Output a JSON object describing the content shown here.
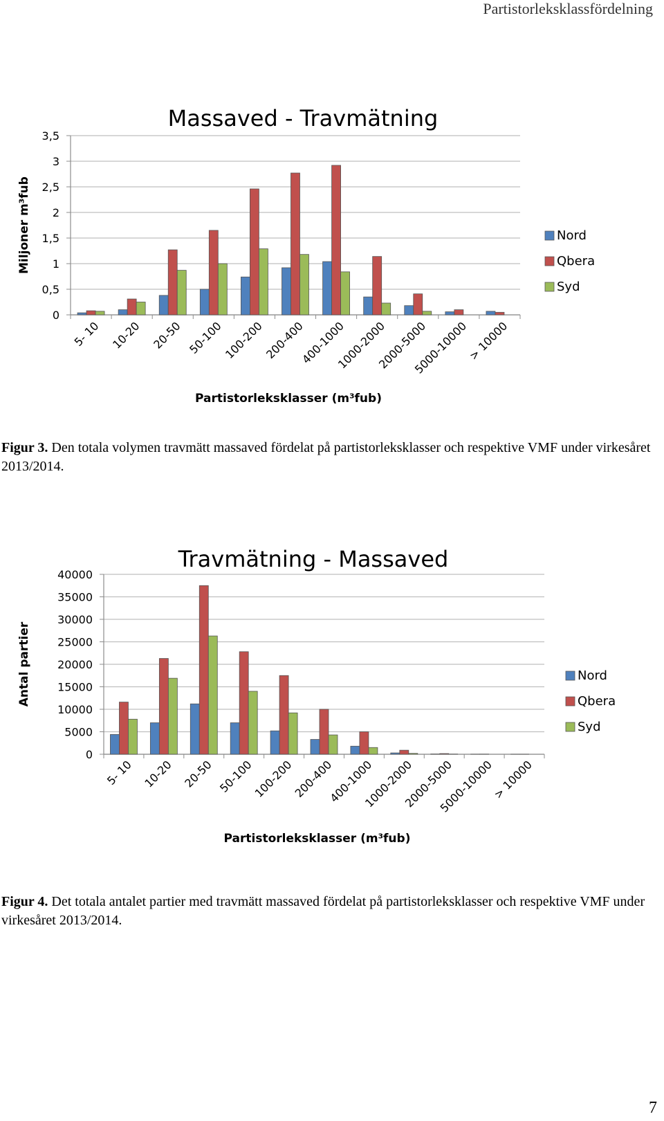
{
  "running_header": "Partistorleksklassfördelning",
  "page_number": "7",
  "colors": {
    "Nord": "#4F81BD",
    "Qbera": "#C0504D",
    "Syd": "#9BBB59",
    "grid": "#bfbfbf"
  },
  "captions": [
    {
      "label": "Figur 3.",
      "text": " Den totala volymen travmätt massaved fördelat på partistorleksklasser och respektive VMF under virkesåret 2013/2014."
    },
    {
      "label": "Figur 4.",
      "text": " Det totala antalet partier med travmätt massaved fördelat på partistorleksklasser och respektive VMF under virkesåret 2013/2014."
    }
  ],
  "chart_data": [
    {
      "type": "bar",
      "title": "Massaved - Travmätning",
      "xlabel": "Partistorleksklasser (m³fub)",
      "ylabel": "Miljoner m³fub",
      "ylim": [
        0,
        3.5
      ],
      "yticks": [
        "0",
        "0,5",
        "1",
        "1,5",
        "2",
        "2,5",
        "3",
        "3,5"
      ],
      "grid": true,
      "legend": "right",
      "categories": [
        "5- 10",
        "10-20",
        "20-50",
        "50-100",
        "100-200",
        "200-400",
        "400-1000",
        "1000-2000",
        "2000-5000",
        "5000-10000",
        "> 10000"
      ],
      "series": [
        {
          "name": "Nord",
          "values": [
            0.04,
            0.1,
            0.38,
            0.5,
            0.74,
            0.92,
            1.04,
            0.35,
            0.18,
            0.06,
            0.07
          ]
        },
        {
          "name": "Qbera",
          "values": [
            0.08,
            0.31,
            1.27,
            1.65,
            2.46,
            2.77,
            2.92,
            1.14,
            0.41,
            0.1,
            0.05
          ]
        },
        {
          "name": "Syd",
          "values": [
            0.07,
            0.25,
            0.87,
            1.0,
            1.29,
            1.18,
            0.84,
            0.23,
            0.07,
            0.0,
            0.0
          ]
        }
      ]
    },
    {
      "type": "bar",
      "title": "Travmätning - Massaved",
      "xlabel": "Partistorleksklasser (m³fub)",
      "ylabel": "Antal partier",
      "ylim": [
        0,
        40000
      ],
      "yticks": [
        "0",
        "5000",
        "10000",
        "15000",
        "20000",
        "25000",
        "30000",
        "35000",
        "40000"
      ],
      "grid": true,
      "legend": "right",
      "categories": [
        "5- 10",
        "10-20",
        "20-50",
        "50-100",
        "100-200",
        "200-400",
        "400-1000",
        "1000-2000",
        "2000-5000",
        "5000-10000",
        "> 10000"
      ],
      "series": [
        {
          "name": "Nord",
          "values": [
            4400,
            7000,
            11200,
            7000,
            5200,
            3300,
            1800,
            300,
            60,
            20,
            10
          ]
        },
        {
          "name": "Qbera",
          "values": [
            11600,
            21300,
            37500,
            22800,
            17500,
            10000,
            5000,
            900,
            150,
            30,
            10
          ]
        },
        {
          "name": "Syd",
          "values": [
            7800,
            16900,
            26300,
            14000,
            9200,
            4300,
            1500,
            200,
            40,
            0,
            0
          ]
        }
      ]
    }
  ]
}
